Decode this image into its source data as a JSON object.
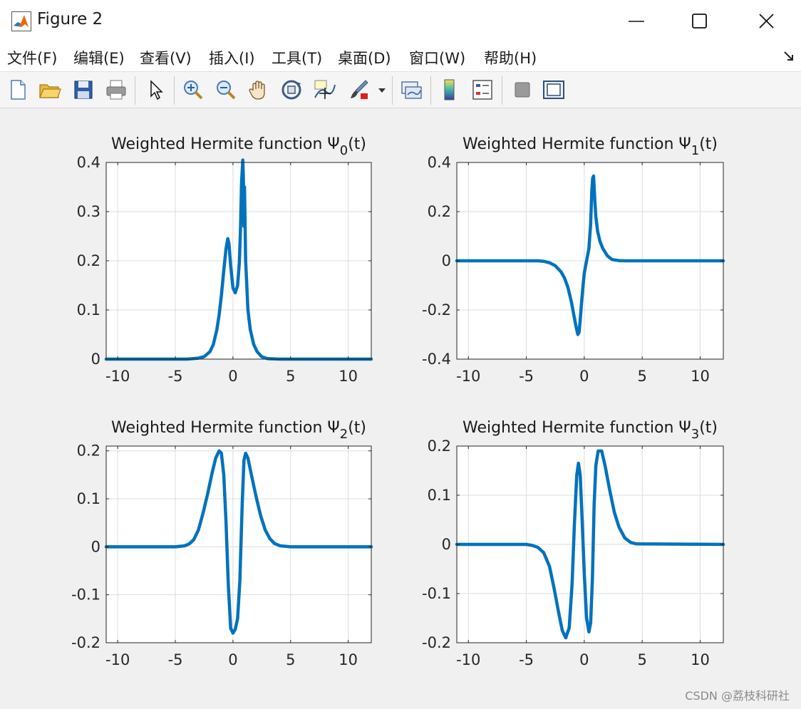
{
  "window": {
    "title": "Figure 2",
    "menu": [
      "文件(F)",
      "编辑(E)",
      "查看(V)",
      "插入(I)",
      "工具(T)",
      "桌面(D)",
      "窗口(W)",
      "帮助(H)"
    ]
  },
  "toolbar": {
    "icons": [
      "new-file-icon",
      "open-folder-icon",
      "save-icon",
      "print-icon",
      "pointer-icon",
      "zoom-in-icon",
      "zoom-out-icon",
      "pan-hand-icon",
      "rotate-3d-icon",
      "data-cursor-icon",
      "brush-icon",
      "link-plot-icon",
      "colorbar-icon",
      "legend-icon",
      "hide-plot-tools-icon",
      "show-plot-tools-icon"
    ]
  },
  "watermark": "CSDN @荔枝科研社",
  "colors": {
    "line": "#0072bd",
    "grid": "#dcdcdc",
    "axes_bg": "#ffffff",
    "figure_bg": "#f0f0f0"
  },
  "chart_data": [
    {
      "type": "line",
      "title_prefix": "Weighted Hermite function Ψ",
      "title_sub": "0",
      "title_suffix": "(t)",
      "xlim": [
        -11,
        12
      ],
      "ylim": [
        0,
        0.4
      ],
      "xticks": [
        -10,
        -5,
        0,
        5,
        10
      ],
      "yticks": [
        0,
        0.1,
        0.2,
        0.3,
        0.4
      ],
      "ytick_labels": [
        "0",
        "0.1",
        "0.2",
        "0.3",
        "0.4"
      ],
      "grid": true,
      "series": [
        {
          "x": [
            -11,
            -4,
            -3,
            -2.5,
            -2,
            -1.7,
            -1.4,
            -1.2,
            -1,
            -0.8,
            -0.6,
            -0.45,
            -0.35,
            -0.2,
            0,
            0.2,
            0.4,
            0.55,
            0.65,
            0.75,
            0.85,
            0.9,
            0.95,
            1.0,
            1.1,
            1.3,
            1.5,
            1.8,
            2.1,
            2.5,
            3,
            4,
            12
          ],
          "y": [
            0,
            0,
            0.002,
            0.005,
            0.015,
            0.03,
            0.06,
            0.09,
            0.13,
            0.18,
            0.225,
            0.245,
            0.235,
            0.19,
            0.145,
            0.135,
            0.15,
            0.195,
            0.26,
            0.36,
            0.405,
            0.37,
            0.27,
            0.35,
            0.2,
            0.1,
            0.06,
            0.03,
            0.015,
            0.005,
            0.001,
            0,
            0
          ]
        }
      ]
    },
    {
      "type": "line",
      "title_prefix": "Weighted Hermite function Ψ",
      "title_sub": "1",
      "title_suffix": "(t)",
      "xlim": [
        -11,
        12
      ],
      "ylim": [
        -0.4,
        0.4
      ],
      "xticks": [
        -10,
        -5,
        0,
        5,
        10
      ],
      "yticks": [
        -0.4,
        -0.2,
        0,
        0.2,
        0.4
      ],
      "ytick_labels": [
        "-0.4",
        "-0.2",
        "0",
        "0.2",
        "0.4"
      ],
      "grid": true,
      "series": [
        {
          "x": [
            -11,
            -4,
            -3.5,
            -3,
            -2.5,
            -2,
            -1.7,
            -1.4,
            -1.1,
            -0.9,
            -0.7,
            -0.55,
            -0.45,
            -0.35,
            -0.25,
            -0.1,
            0,
            0.2,
            0.4,
            0.55,
            0.65,
            0.72,
            0.8,
            0.85,
            0.92,
            1.0,
            1.15,
            1.35,
            1.6,
            2,
            2.4,
            3,
            3.5,
            12
          ],
          "y": [
            0,
            0,
            -0.002,
            -0.008,
            -0.02,
            -0.045,
            -0.07,
            -0.11,
            -0.17,
            -0.22,
            -0.27,
            -0.3,
            -0.29,
            -0.24,
            -0.18,
            -0.1,
            -0.05,
            0,
            0.05,
            0.15,
            0.28,
            0.335,
            0.345,
            0.3,
            0.24,
            0.18,
            0.12,
            0.08,
            0.05,
            0.02,
            0.005,
            0.001,
            0,
            0
          ]
        }
      ]
    },
    {
      "type": "line",
      "title_prefix": "Weighted Hermite function Ψ",
      "title_sub": "2",
      "title_suffix": "(t)",
      "xlim": [
        -11,
        12
      ],
      "ylim": [
        -0.2,
        0.21
      ],
      "xticks": [
        -10,
        -5,
        0,
        5,
        10
      ],
      "yticks": [
        -0.2,
        -0.1,
        0,
        0.1,
        0.2
      ],
      "ytick_labels": [
        "-0.2",
        "-0.1",
        "0",
        "0.1",
        "0.2"
      ],
      "grid": true,
      "series": [
        {
          "x": [
            -11,
            -5,
            -4.2,
            -3.8,
            -3.4,
            -3,
            -2.6,
            -2.2,
            -1.8,
            -1.5,
            -1.2,
            -1.0,
            -0.8,
            -0.6,
            -0.4,
            -0.2,
            0,
            0.2,
            0.4,
            0.6,
            0.8,
            0.95,
            1.1,
            1.3,
            1.6,
            2,
            2.4,
            2.8,
            3.2,
            3.6,
            4.1,
            5,
            12
          ],
          "y": [
            0,
            0,
            0.002,
            0.006,
            0.015,
            0.035,
            0.07,
            0.11,
            0.155,
            0.185,
            0.2,
            0.195,
            0.15,
            0.05,
            -0.08,
            -0.17,
            -0.18,
            -0.172,
            -0.15,
            -0.07,
            0.09,
            0.18,
            0.195,
            0.185,
            0.15,
            0.105,
            0.065,
            0.035,
            0.017,
            0.007,
            0.002,
            0,
            0
          ]
        }
      ]
    },
    {
      "type": "line",
      "title_prefix": "Weighted Hermite function Ψ",
      "title_sub": "3",
      "title_suffix": "(t)",
      "xlim": [
        -11,
        12
      ],
      "ylim": [
        -0.2,
        0.2
      ],
      "xticks": [
        -10,
        -5,
        0,
        5,
        10
      ],
      "yticks": [
        -0.2,
        -0.1,
        0,
        0.1,
        0.2
      ],
      "ytick_labels": [
        "-0.2",
        "-0.1",
        "0",
        "0.1",
        "0.2"
      ],
      "grid": true,
      "series": [
        {
          "x": [
            -11,
            -5,
            -4.5,
            -4,
            -3.5,
            -3,
            -2.6,
            -2.2,
            -1.9,
            -1.6,
            -1.3,
            -1.05,
            -0.85,
            -0.65,
            -0.5,
            -0.35,
            -0.2,
            0,
            0.2,
            0.4,
            0.55,
            0.7,
            0.85,
            1.0,
            1.2,
            1.5,
            1.8,
            2.2,
            2.6,
            3,
            3.5,
            4,
            4.5,
            12
          ],
          "y": [
            0,
            0,
            -0.002,
            -0.006,
            -0.017,
            -0.045,
            -0.09,
            -0.14,
            -0.175,
            -0.19,
            -0.17,
            -0.08,
            0.04,
            0.14,
            0.165,
            0.14,
            0.06,
            -0.06,
            -0.15,
            -0.178,
            -0.16,
            -0.07,
            0.08,
            0.16,
            0.19,
            0.19,
            0.16,
            0.11,
            0.065,
            0.035,
            0.013,
            0.004,
            0.001,
            0
          ]
        }
      ]
    }
  ]
}
